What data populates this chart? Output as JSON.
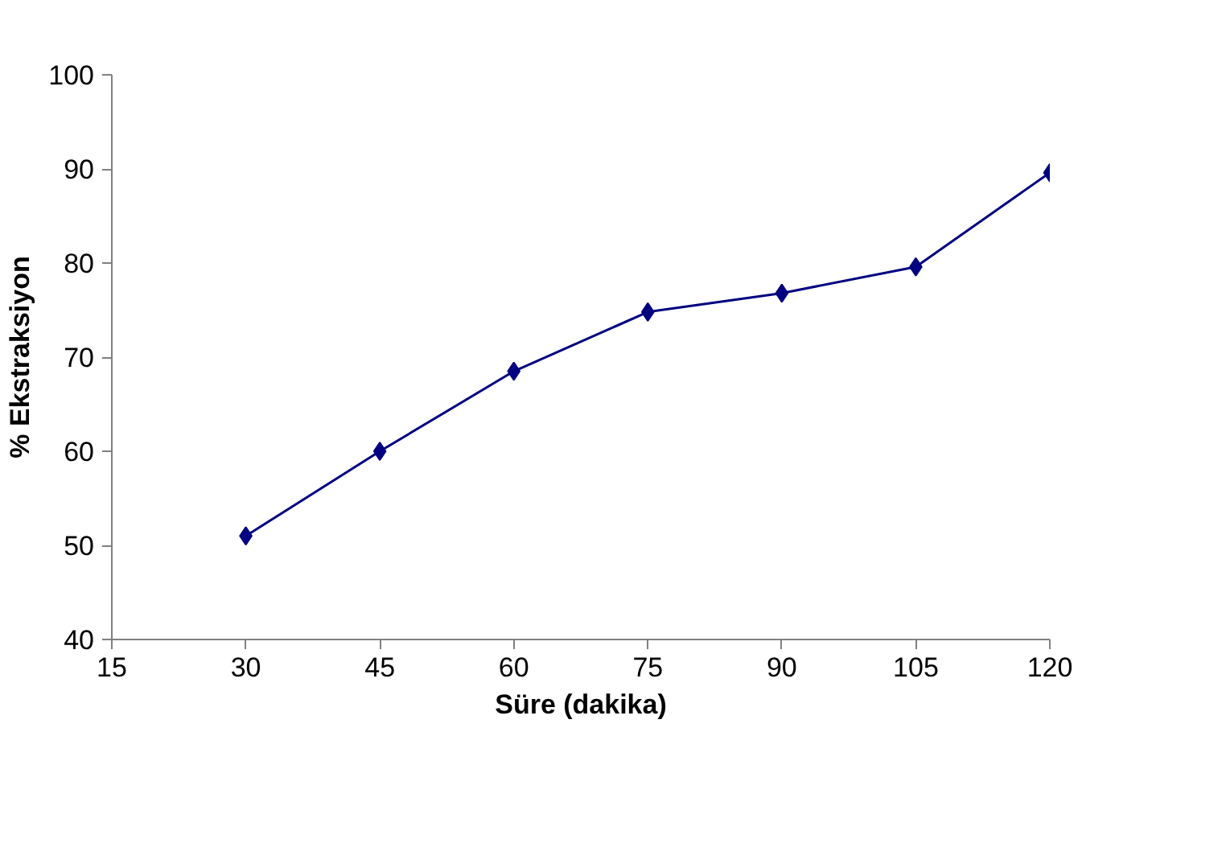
{
  "chart_data": {
    "type": "line",
    "xlabel": "Süre (dakika)",
    "ylabel": "% Ekstraksiyon",
    "x": [
      30,
      45,
      60,
      75,
      90,
      105,
      120
    ],
    "series": [
      {
        "color": "#000080",
        "values": [
          51,
          60,
          68.5,
          74.8,
          76.8,
          79.6,
          89.6
        ]
      }
    ],
    "xlim": [
      15,
      120
    ],
    "xticks": [
      15,
      30,
      45,
      60,
      75,
      90,
      105,
      120
    ],
    "ylim": [
      40,
      100
    ],
    "yticks": [
      40,
      50,
      60,
      70,
      80,
      90,
      100
    ],
    "grid": false,
    "marker": "diamond",
    "line_style": "solid"
  }
}
